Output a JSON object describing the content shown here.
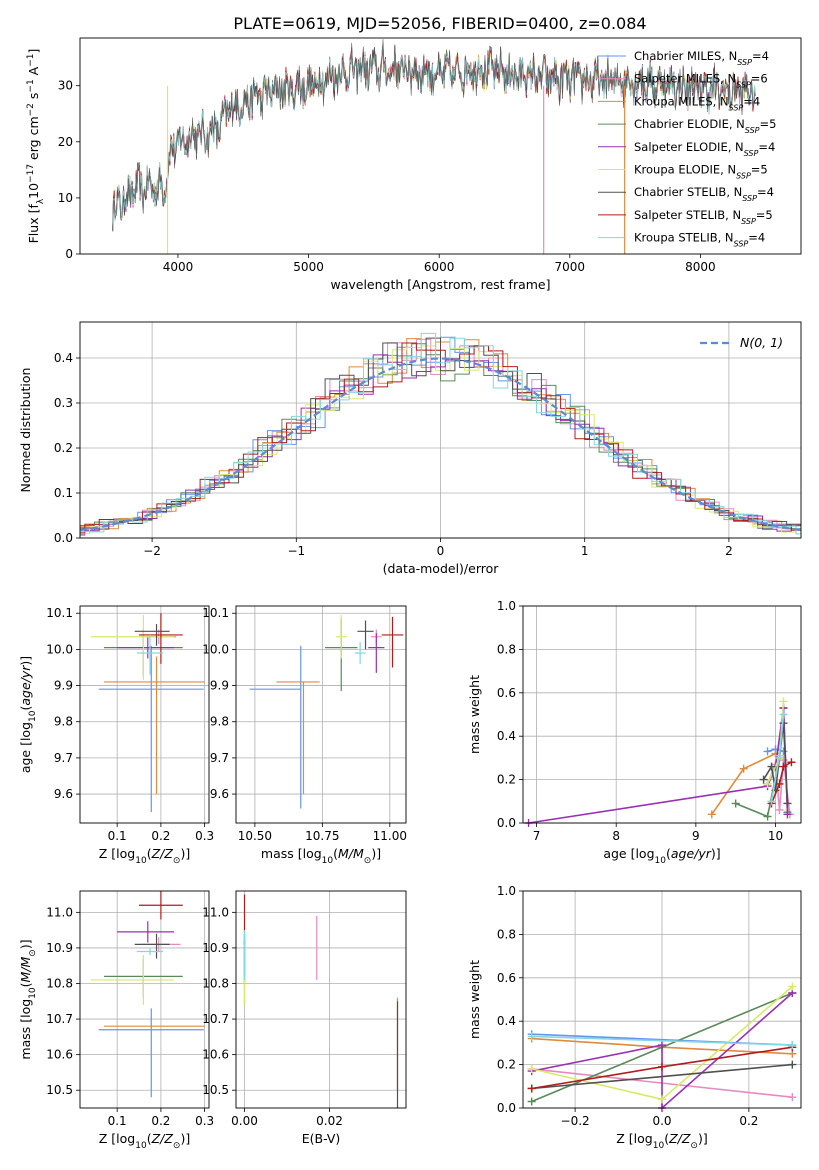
{
  "title": "PLATE=0619, MJD=52056, FIBERID=0400, z=0.084",
  "colors": {
    "series": [
      "#6495ed",
      "#e88ac2",
      "#e08a3c",
      "#5a8a5a",
      "#9a2fb4",
      "#d9e86a",
      "#505050",
      "#b01c1c",
      "#80d8e0"
    ],
    "gauss": "#5b8ad8",
    "grid": "#b0b0b0"
  },
  "chart_data": [
    {
      "id": "spectrum",
      "type": "line",
      "xlabel": "wavelength [Angstrom, rest frame]",
      "ylabel": "Flux [f$_\\lambda$10$^{-17}$ erg cm$^{-2}$ s$^{-1}$ A$^{-1}$]",
      "xlim": [
        3250,
        8770
      ],
      "ylim": [
        0,
        38.5
      ],
      "xticks": [
        4000,
        5000,
        6000,
        7000,
        8000
      ],
      "yticks": [
        0,
        10,
        20,
        30
      ],
      "grid": false,
      "legend_position": "top-right",
      "legend": [
        {
          "pre": "Chabrier MILES, N",
          "sub": "SSP",
          "post": "=4"
        },
        {
          "pre": "Salpeter MILES, N",
          "sub": "SSP",
          "post": "=6"
        },
        {
          "pre": "Kroupa MILES, N",
          "sub": "SSP",
          "post": "=4"
        },
        {
          "pre": "Chabrier ELODIE, N",
          "sub": "SSP",
          "post": "=5"
        },
        {
          "pre": "Salpeter ELODIE, N",
          "sub": "SSP",
          "post": "=4"
        },
        {
          "pre": "Kroupa ELODIE, N",
          "sub": "SSP",
          "post": "=5"
        },
        {
          "pre": "Chabrier STELIB, N",
          "sub": "SSP",
          "post": "=4"
        },
        {
          "pre": "Salpeter STELIB, N",
          "sub": "SSP",
          "post": "=5"
        },
        {
          "pre": "Kroupa STELIB, N",
          "sub": "SSP",
          "post": "=4"
        }
      ],
      "continuum": [
        [
          3500,
          8
        ],
        [
          3700,
          12
        ],
        [
          3900,
          12
        ],
        [
          3950,
          19
        ],
        [
          4100,
          21
        ],
        [
          4300,
          22
        ],
        [
          4400,
          26
        ],
        [
          4700,
          29
        ],
        [
          5000,
          30
        ],
        [
          5200,
          32
        ],
        [
          5400,
          33
        ],
        [
          5700,
          33
        ],
        [
          6000,
          32
        ],
        [
          6300,
          33
        ],
        [
          6600,
          32
        ],
        [
          7000,
          31
        ],
        [
          7400,
          31
        ],
        [
          7800,
          30
        ],
        [
          8200,
          29
        ],
        [
          8400,
          29
        ]
      ]
    },
    {
      "id": "residuals",
      "type": "histogram",
      "xlabel": "(data-model)/error",
      "ylabel": "Normed distribution",
      "xlim": [
        -2.5,
        2.5
      ],
      "ylim": [
        0,
        0.48
      ],
      "xticks": [
        -2,
        -1,
        0,
        1,
        2
      ],
      "yticks": [
        0.0,
        0.1,
        0.2,
        0.3,
        0.4
      ],
      "grid": true,
      "legend_position": "top-right",
      "gauss_label": "N(0, 1)",
      "bin_width": 0.1
    },
    {
      "id": "z-age",
      "type": "scatter",
      "xlabel": "Z [log10(Z/Z_sun)]",
      "ylabel": "age  [log10(age/yr)]",
      "xlim": [
        0.015,
        0.31
      ],
      "ylim": [
        9.52,
        10.12
      ],
      "xticks": [
        0.1,
        0.2,
        0.3
      ],
      "yticks": [
        9.6,
        9.7,
        9.8,
        9.9,
        10.0,
        10.1
      ],
      "grid": true,
      "points": [
        {
          "x": 0.178,
          "y": 9.89,
          "xerr": [
            0.12,
            0.12
          ],
          "yerr": [
            0.34,
            0.12
          ]
        },
        {
          "x": 0.195,
          "y": 10.035,
          "xerr": [
            0.04,
            0.04
          ],
          "yerr": [
            0.02,
            0.02
          ]
        },
        {
          "x": 0.19,
          "y": 9.91,
          "xerr": [
            0.12,
            0.11
          ],
          "yerr": [
            0.31,
            0.07
          ]
        },
        {
          "x": 0.16,
          "y": 10.005,
          "xerr": [
            0.09,
            0.09
          ],
          "yerr": [
            0.08,
            0.05
          ]
        },
        {
          "x": 0.17,
          "y": 10.005,
          "xerr": [
            0.07,
            0.06
          ],
          "yerr": [
            0.03,
            0.03
          ]
        },
        {
          "x": 0.16,
          "y": 10.035,
          "xerr": [
            0.12,
            0.07
          ],
          "yerr": [
            0.12,
            0.06
          ]
        },
        {
          "x": 0.19,
          "y": 10.05,
          "xerr": [
            0.05,
            0.03
          ],
          "yerr": [
            0.04,
            0.02
          ]
        },
        {
          "x": 0.2,
          "y": 10.04,
          "xerr": [
            0.05,
            0.05
          ],
          "yerr": [
            0.08,
            0.06
          ]
        },
        {
          "x": 0.175,
          "y": 9.99,
          "xerr": [
            0.03,
            0.03
          ],
          "yerr": [
            0.06,
            0.05
          ]
        }
      ]
    },
    {
      "id": "mass-age",
      "type": "scatter",
      "xlabel": "mass [log10(M/M_sun)]",
      "ylabel": "",
      "xlim": [
        10.43,
        11.06
      ],
      "ylim": [
        9.52,
        10.12
      ],
      "xticks": [
        10.5,
        10.75,
        11.0
      ],
      "yticks": [
        9.6,
        9.7,
        9.8,
        9.9,
        10.0,
        10.1
      ],
      "grid": true,
      "points": [
        {
          "x": 10.67,
          "y": 9.89,
          "xerr": [
            0.19,
            0.0
          ],
          "yerr": [
            0.33,
            0.12
          ]
        },
        {
          "x": 10.95,
          "y": 10.035,
          "xerr": [
            0.02,
            0.02
          ],
          "yerr": [
            0.02,
            0.02
          ]
        },
        {
          "x": 10.68,
          "y": 9.91,
          "xerr": [
            0.1,
            0.06
          ],
          "yerr": [
            0.31,
            0.0
          ]
        },
        {
          "x": 10.82,
          "y": 10.005,
          "xerr": [
            0.06,
            0.06
          ],
          "yerr": [
            0.12,
            0.08
          ]
        },
        {
          "x": 10.95,
          "y": 10.005,
          "xerr": [
            0.03,
            0.03
          ],
          "yerr": [
            0.07,
            0.04
          ]
        },
        {
          "x": 10.82,
          "y": 10.035,
          "xerr": [
            0.02,
            0.02
          ],
          "yerr": [
            0.06,
            0.06
          ]
        },
        {
          "x": 10.91,
          "y": 10.05,
          "xerr": [
            0.03,
            0.03
          ],
          "yerr": [
            0.05,
            0.03
          ]
        },
        {
          "x": 11.01,
          "y": 10.04,
          "xerr": [
            0.04,
            0.04
          ],
          "yerr": [
            0.09,
            0.05
          ]
        },
        {
          "x": 10.89,
          "y": 9.99,
          "xerr": [
            0.02,
            0.02
          ],
          "yerr": [
            0.03,
            0.03
          ]
        }
      ]
    },
    {
      "id": "age-weight",
      "type": "line",
      "xlabel": "age  [log10(age/yr)]",
      "ylabel": "mass weight",
      "xlim": [
        6.83,
        10.32
      ],
      "ylim": [
        0,
        1.0
      ],
      "xticks": [
        7,
        8,
        9,
        10
      ],
      "yticks": [
        0.0,
        0.2,
        0.4,
        0.6,
        0.8,
        1.0
      ],
      "grid": true,
      "series": [
        {
          "x": [
            9.9,
            10.0,
            10.1
          ],
          "y": [
            0.33,
            0.34,
            0.33
          ]
        },
        {
          "x": [
            9.9,
            10.0,
            10.05,
            10.1,
            10.18
          ],
          "y": [
            0.18,
            0.27,
            0.06,
            0.29,
            0.04
          ]
        },
        {
          "x": [
            9.2,
            9.6,
            10.0
          ],
          "y": [
            0.04,
            0.25,
            0.32
          ]
        },
        {
          "x": [
            9.5,
            9.9,
            10.05,
            10.1,
            10.15
          ],
          "y": [
            0.09,
            0.03,
            0.3,
            0.53,
            0.05
          ]
        },
        {
          "x": [
            6.9,
            9.9,
            10.0,
            10.1,
            10.15
          ],
          "y": [
            0.0,
            0.17,
            0.26,
            0.53,
            0.04
          ]
        },
        {
          "x": [
            9.9,
            10.05,
            10.1
          ],
          "y": [
            0.18,
            0.3,
            0.56
          ]
        },
        {
          "x": [
            9.85,
            9.95,
            10.0,
            10.1,
            10.15
          ],
          "y": [
            0.2,
            0.26,
            0.15,
            0.46,
            0.09
          ]
        },
        {
          "x": [
            9.95,
            10.05,
            10.1,
            10.2
          ],
          "y": [
            0.09,
            0.18,
            0.26,
            0.28
          ]
        },
        {
          "x": [
            9.95,
            10.05,
            10.1
          ],
          "y": [
            0.1,
            0.31,
            0.5
          ]
        }
      ]
    },
    {
      "id": "z-mass",
      "type": "scatter",
      "xlabel": "Z [log10(Z/Z_sun)]",
      "ylabel": "mass [log10(M/M_sun)]",
      "xlim": [
        0.015,
        0.31
      ],
      "ylim": [
        10.45,
        11.06
      ],
      "xticks": [
        0.1,
        0.2,
        0.3
      ],
      "yticks": [
        10.5,
        10.6,
        10.7,
        10.8,
        10.9,
        11.0
      ],
      "grid": true,
      "points": [
        {
          "x": 0.178,
          "y": 10.67,
          "xerr": [
            0.12,
            0.12
          ],
          "yerr": [
            0.19,
            0.06
          ]
        },
        {
          "x": 0.195,
          "y": 10.91,
          "xerr": [
            0.04,
            0.05
          ],
          "yerr": [
            0.02,
            0.02
          ]
        },
        {
          "x": 0.19,
          "y": 10.68,
          "xerr": [
            0.12,
            0.11
          ],
          "yerr": [
            0.0,
            0.0
          ]
        },
        {
          "x": 0.16,
          "y": 10.82,
          "xerr": [
            0.09,
            0.09
          ],
          "yerr": [
            0.06,
            0.05
          ]
        },
        {
          "x": 0.17,
          "y": 10.945,
          "xerr": [
            0.07,
            0.06
          ],
          "yerr": [
            0.03,
            0.03
          ]
        },
        {
          "x": 0.16,
          "y": 10.81,
          "xerr": [
            0.12,
            0.07
          ],
          "yerr": [
            0.07,
            0.07
          ]
        },
        {
          "x": 0.19,
          "y": 10.91,
          "xerr": [
            0.05,
            0.03
          ],
          "yerr": [
            0.04,
            0.03
          ]
        },
        {
          "x": 0.2,
          "y": 11.02,
          "xerr": [
            0.05,
            0.05
          ],
          "yerr": [
            0.04,
            0.04
          ]
        },
        {
          "x": 0.175,
          "y": 10.89,
          "xerr": [
            0.03,
            0.03
          ],
          "yerr": [
            0.01,
            0.01
          ]
        }
      ]
    },
    {
      "id": "ebv-mass",
      "type": "scatter",
      "xlabel": "E(B-V)",
      "ylabel": "",
      "xlim": [
        -0.002,
        0.038
      ],
      "ylim": [
        10.45,
        11.06
      ],
      "xticks": [
        0.0,
        0.02
      ],
      "yticks": [
        10.5,
        10.6,
        10.7,
        10.8,
        10.9,
        11.0
      ],
      "grid": true,
      "points": [
        {
          "x": 0.0,
          "y": 10.84,
          "xerr": [
            0,
            0
          ],
          "yerr": [
            0.1,
            0.1
          ]
        },
        {
          "x": 0.017,
          "y": 10.9,
          "xerr": [
            0,
            0
          ],
          "yerr": [
            0.09,
            0.09
          ]
        },
        {
          "x": 0.036,
          "y": 10.63,
          "xerr": [
            0,
            0
          ],
          "yerr": [
            0.13,
            0.13
          ]
        },
        {
          "x": 0.0,
          "y": 10.85,
          "xerr": [
            0,
            0
          ],
          "yerr": [
            0.05,
            0.05
          ]
        },
        {
          "x": 0.0,
          "y": 10.87,
          "xerr": [
            0,
            0
          ],
          "yerr": [
            0.05,
            0.05
          ]
        },
        {
          "x": 0.0,
          "y": 10.82,
          "xerr": [
            0,
            0
          ],
          "yerr": [
            0.08,
            0.08
          ]
        },
        {
          "x": 0.036,
          "y": 10.6,
          "xerr": [
            0,
            0
          ],
          "yerr": [
            0.15,
            0.15
          ]
        },
        {
          "x": 0.0,
          "y": 10.98,
          "xerr": [
            0,
            0
          ],
          "yerr": [
            0.07,
            0.07
          ]
        },
        {
          "x": 0.0,
          "y": 10.88,
          "xerr": [
            0,
            0
          ],
          "yerr": [
            0.07,
            0.07
          ]
        }
      ]
    },
    {
      "id": "z-weight",
      "type": "line",
      "xlabel": "Z [log10(Z/Z_sun)]",
      "ylabel": "mass weight",
      "xlim": [
        -0.32,
        0.32
      ],
      "ylim": [
        0,
        1.0
      ],
      "xticks": [
        -0.2,
        0.0,
        0.2
      ],
      "yticks": [
        0.0,
        0.2,
        0.4,
        0.6,
        0.8,
        1.0
      ],
      "grid": true,
      "series": [
        {
          "x": [
            -0.3,
            0.3
          ],
          "y": [
            0.34,
            0.29
          ]
        },
        {
          "x": [
            -0.3,
            0.3
          ],
          "y": [
            0.18,
            0.05
          ]
        },
        {
          "x": [
            -0.3,
            0.0,
            0.3
          ],
          "y": [
            0.32,
            0.28,
            0.25
          ]
        },
        {
          "x": [
            -0.3,
            0.3
          ],
          "y": [
            0.03,
            0.53
          ]
        },
        {
          "x": [
            -0.3,
            0.0,
            0.0,
            0.3
          ],
          "y": [
            0.17,
            0.29,
            0.0,
            0.53
          ]
        },
        {
          "x": [
            -0.3,
            0.0,
            0.3
          ],
          "y": [
            0.18,
            0.04,
            0.56
          ]
        },
        {
          "x": [
            -0.3,
            0.3
          ],
          "y": [
            0.09,
            0.2
          ]
        },
        {
          "x": [
            -0.3,
            0.0,
            0.3
          ],
          "y": [
            0.09,
            0.19,
            0.28
          ]
        },
        {
          "x": [
            -0.3,
            0.3
          ],
          "y": [
            0.33,
            0.29
          ]
        }
      ]
    }
  ]
}
